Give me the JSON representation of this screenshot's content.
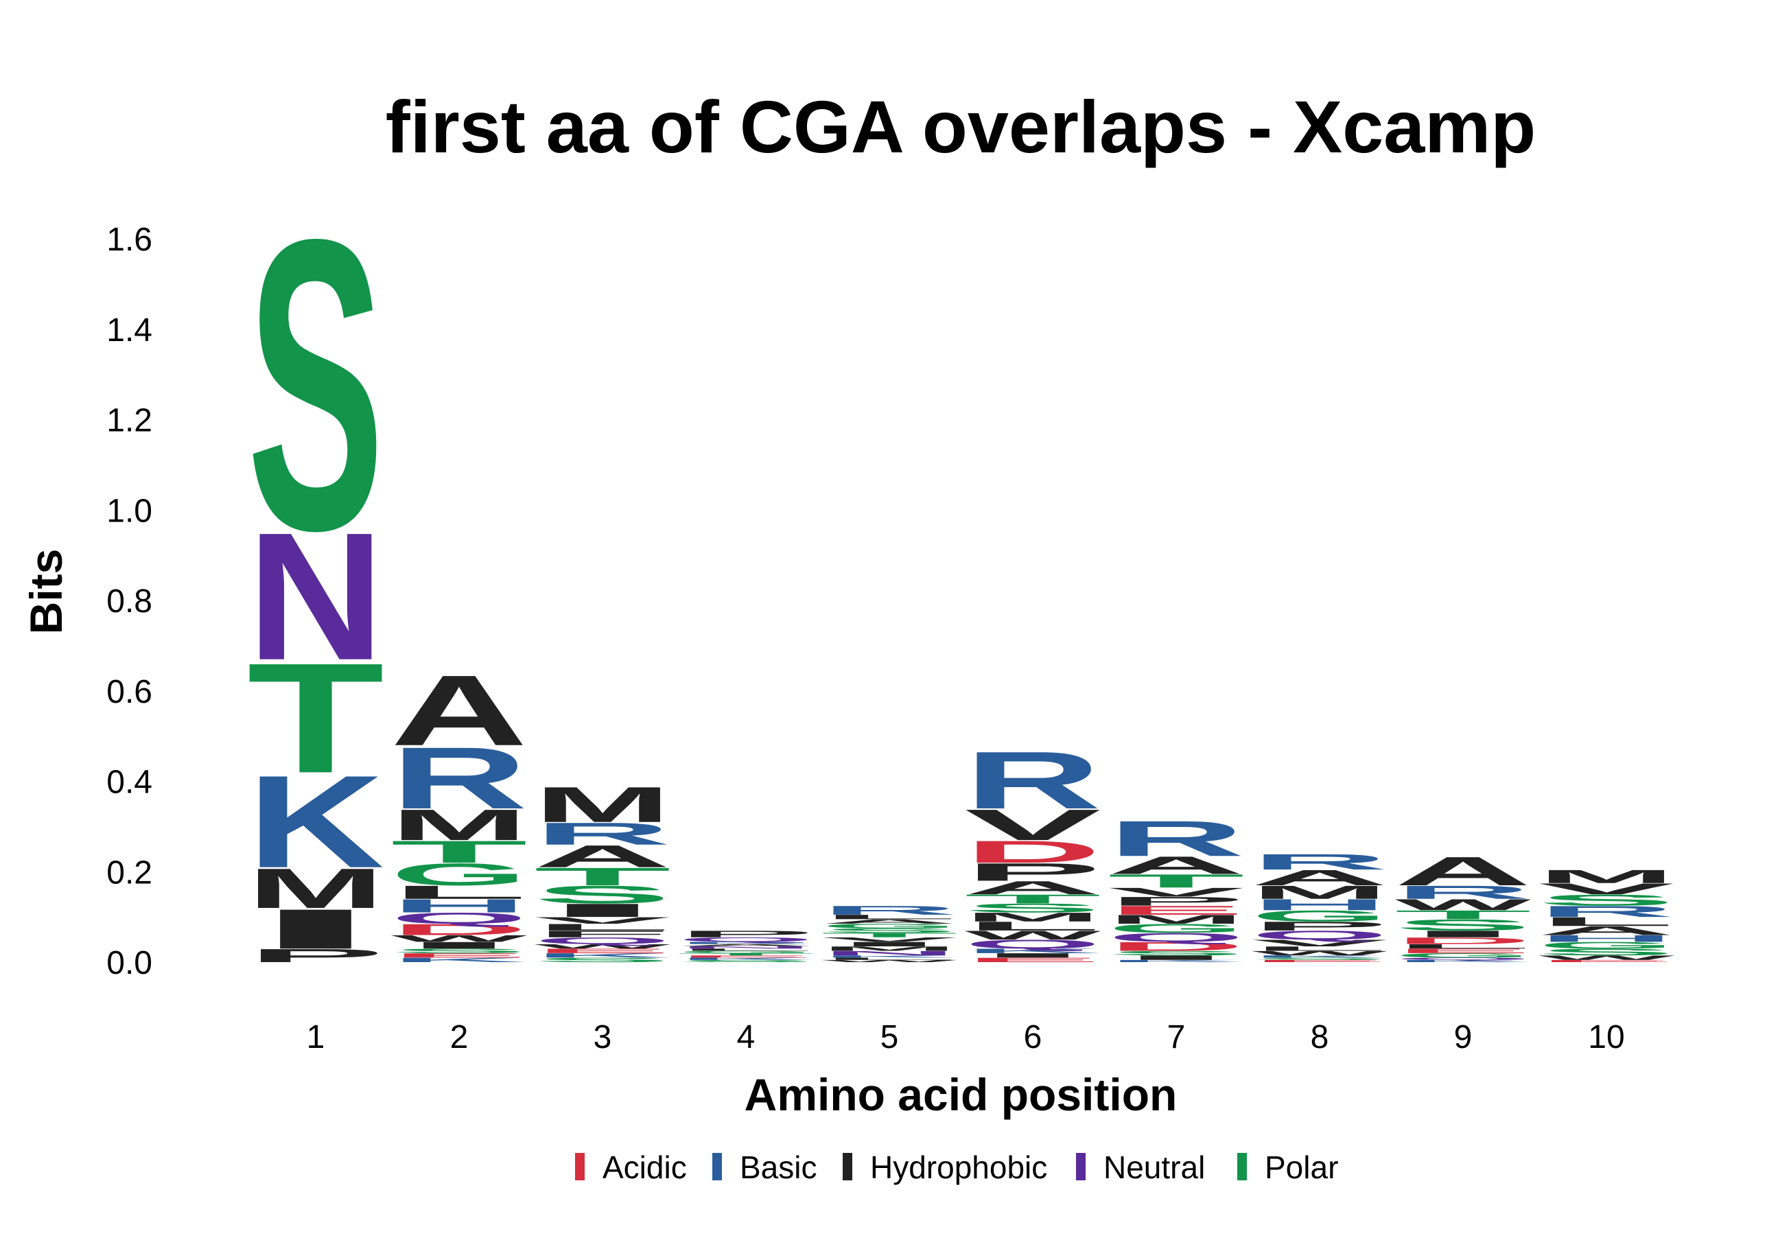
{
  "chart_data": {
    "type": "sequence-logo",
    "title": "first aa of CGA overlaps - Xcamp",
    "xlabel": "Amino acid position",
    "ylabel": "Bits",
    "ylim": [
      0,
      1.6
    ],
    "yticks": [
      "0.0",
      "0.2",
      "0.4",
      "0.6",
      "0.8",
      "1.0",
      "1.2",
      "1.4",
      "1.6"
    ],
    "ytick_values": [
      0,
      0.2,
      0.4,
      0.6,
      0.8,
      1.0,
      1.2,
      1.4,
      1.6
    ],
    "positions": [
      "1",
      "2",
      "3",
      "4",
      "5",
      "6",
      "7",
      "8",
      "9",
      "10"
    ],
    "colors": {
      "Acidic": "#d62e3f",
      "Basic": "#2a5d9b",
      "Hydrophobic": "#222222",
      "Neutral": "#5a2b9a",
      "Polar": "#12944a"
    },
    "legend": [
      {
        "label": "Acidic",
        "group": "Acidic"
      },
      {
        "label": "Basic",
        "group": "Basic"
      },
      {
        "label": "Hydrophobic",
        "group": "Hydrophobic"
      },
      {
        "label": "Neutral",
        "group": "Neutral"
      },
      {
        "label": "Polar",
        "group": "Polar"
      }
    ],
    "stacks": [
      {
        "position": "1",
        "letters": [
          {
            "aa": "P",
            "group": "Hydrophobic",
            "bits": 0.03
          },
          {
            "aa": "I",
            "group": "Hydrophobic",
            "bits": 0.09
          },
          {
            "aa": "M",
            "group": "Hydrophobic",
            "bits": 0.09
          },
          {
            "aa": "K",
            "group": "Basic",
            "bits": 0.21
          },
          {
            "aa": "T",
            "group": "Polar",
            "bits": 0.25
          },
          {
            "aa": "N",
            "group": "Neutral",
            "bits": 0.29
          },
          {
            "aa": "S",
            "group": "Polar",
            "bits": 0.66
          }
        ]
      },
      {
        "position": "2",
        "letters": [
          {
            "aa": "K",
            "group": "Basic",
            "bits": 0.01
          },
          {
            "aa": "E",
            "group": "Acidic",
            "bits": 0.01
          },
          {
            "aa": "S",
            "group": "Polar",
            "bits": 0.01
          },
          {
            "aa": "I",
            "group": "Hydrophobic",
            "bits": 0.015
          },
          {
            "aa": "W",
            "group": "Hydrophobic",
            "bits": 0.015
          },
          {
            "aa": "D",
            "group": "Acidic",
            "bits": 0.025
          },
          {
            "aa": "Q",
            "group": "Neutral",
            "bits": 0.025
          },
          {
            "aa": "H",
            "group": "Basic",
            "bits": 0.03
          },
          {
            "aa": "L",
            "group": "Hydrophobic",
            "bits": 0.03
          },
          {
            "aa": "G",
            "group": "Polar",
            "bits": 0.05
          },
          {
            "aa": "T",
            "group": "Polar",
            "bits": 0.05
          },
          {
            "aa": "M",
            "group": "Hydrophobic",
            "bits": 0.07
          },
          {
            "aa": "R",
            "group": "Basic",
            "bits": 0.14
          },
          {
            "aa": "A",
            "group": "Hydrophobic",
            "bits": 0.16
          }
        ]
      },
      {
        "position": "3",
        "letters": [
          {
            "aa": "S",
            "group": "Polar",
            "bits": 0.01
          },
          {
            "aa": "K",
            "group": "Basic",
            "bits": 0.01
          },
          {
            "aa": "E",
            "group": "Acidic",
            "bits": 0.01
          },
          {
            "aa": "W",
            "group": "Hydrophobic",
            "bits": 0.01
          },
          {
            "aa": "Q",
            "group": "Neutral",
            "bits": 0.015
          },
          {
            "aa": "F",
            "group": "Hydrophobic",
            "bits": 0.015
          },
          {
            "aa": "L",
            "group": "Hydrophobic",
            "bits": 0.015
          },
          {
            "aa": "V",
            "group": "Hydrophobic",
            "bits": 0.015
          },
          {
            "aa": "I",
            "group": "Hydrophobic",
            "bits": 0.03
          },
          {
            "aa": "S",
            "group": "Polar",
            "bits": 0.04
          },
          {
            "aa": "T",
            "group": "Polar",
            "bits": 0.04
          },
          {
            "aa": "A",
            "group": "Hydrophobic",
            "bits": 0.05
          },
          {
            "aa": "R",
            "group": "Basic",
            "bits": 0.05
          },
          {
            "aa": "M",
            "group": "Hydrophobic",
            "bits": 0.08
          }
        ]
      },
      {
        "position": "4",
        "letters": [
          {
            "aa": "S",
            "group": "Polar",
            "bits": 0.005
          },
          {
            "aa": "K",
            "group": "Basic",
            "bits": 0.005
          },
          {
            "aa": "E",
            "group": "Acidic",
            "bits": 0.005
          },
          {
            "aa": "T",
            "group": "Polar",
            "bits": 0.005
          },
          {
            "aa": "G",
            "group": "Polar",
            "bits": 0.005
          },
          {
            "aa": "L",
            "group": "Hydrophobic",
            "bits": 0.005
          },
          {
            "aa": "N",
            "group": "Neutral",
            "bits": 0.005
          },
          {
            "aa": "A",
            "group": "Hydrophobic",
            "bits": 0.005
          },
          {
            "aa": "R",
            "group": "Basic",
            "bits": 0.005
          },
          {
            "aa": "Q",
            "group": "Neutral",
            "bits": 0.01
          },
          {
            "aa": "P",
            "group": "Hydrophobic",
            "bits": 0.015
          }
        ]
      },
      {
        "position": "5",
        "letters": [
          {
            "aa": "W",
            "group": "Hydrophobic",
            "bits": 0.005
          },
          {
            "aa": "L",
            "group": "Hydrophobic",
            "bits": 0.005
          },
          {
            "aa": "K",
            "group": "Basic",
            "bits": 0.005
          },
          {
            "aa": "N",
            "group": "Neutral",
            "bits": 0.01
          },
          {
            "aa": "M",
            "group": "Hydrophobic",
            "bits": 0.01
          },
          {
            "aa": "I",
            "group": "Hydrophobic",
            "bits": 0.01
          },
          {
            "aa": "V",
            "group": "Hydrophobic",
            "bits": 0.01
          },
          {
            "aa": "T",
            "group": "Polar",
            "bits": 0.01
          },
          {
            "aa": "S",
            "group": "Polar",
            "bits": 0.01
          },
          {
            "aa": "G",
            "group": "Polar",
            "bits": 0.01
          },
          {
            "aa": "A",
            "group": "Hydrophobic",
            "bits": 0.01
          },
          {
            "aa": "L",
            "group": "Hydrophobic",
            "bits": 0.01
          },
          {
            "aa": "R",
            "group": "Basic",
            "bits": 0.02
          }
        ]
      },
      {
        "position": "6",
        "letters": [
          {
            "aa": "E",
            "group": "Acidic",
            "bits": 0.01
          },
          {
            "aa": "I",
            "group": "Hydrophobic",
            "bits": 0.01
          },
          {
            "aa": "K",
            "group": "Basic",
            "bits": 0.01
          },
          {
            "aa": "Q",
            "group": "Neutral",
            "bits": 0.02
          },
          {
            "aa": "W",
            "group": "Hydrophobic",
            "bits": 0.02
          },
          {
            "aa": "L",
            "group": "Hydrophobic",
            "bits": 0.02
          },
          {
            "aa": "M",
            "group": "Hydrophobic",
            "bits": 0.02
          },
          {
            "aa": "S",
            "group": "Polar",
            "bits": 0.02
          },
          {
            "aa": "T",
            "group": "Polar",
            "bits": 0.02
          },
          {
            "aa": "A",
            "group": "Hydrophobic",
            "bits": 0.03
          },
          {
            "aa": "P",
            "group": "Hydrophobic",
            "bits": 0.04
          },
          {
            "aa": "D",
            "group": "Acidic",
            "bits": 0.05
          },
          {
            "aa": "V",
            "group": "Hydrophobic",
            "bits": 0.07
          },
          {
            "aa": "R",
            "group": "Basic",
            "bits": 0.13
          }
        ]
      },
      {
        "position": "7",
        "letters": [
          {
            "aa": "K",
            "group": "Basic",
            "bits": 0.005
          },
          {
            "aa": "I",
            "group": "Hydrophobic",
            "bits": 0.01
          },
          {
            "aa": "S",
            "group": "Polar",
            "bits": 0.01
          },
          {
            "aa": "D",
            "group": "Acidic",
            "bits": 0.02
          },
          {
            "aa": "Q",
            "group": "Neutral",
            "bits": 0.02
          },
          {
            "aa": "G",
            "group": "Polar",
            "bits": 0.02
          },
          {
            "aa": "M",
            "group": "Hydrophobic",
            "bits": 0.02
          },
          {
            "aa": "E",
            "group": "Acidic",
            "bits": 0.02
          },
          {
            "aa": "P",
            "group": "Hydrophobic",
            "bits": 0.02
          },
          {
            "aa": "V",
            "group": "Hydrophobic",
            "bits": 0.02
          },
          {
            "aa": "T",
            "group": "Polar",
            "bits": 0.03
          },
          {
            "aa": "A",
            "group": "Hydrophobic",
            "bits": 0.04
          },
          {
            "aa": "R",
            "group": "Basic",
            "bits": 0.08
          }
        ]
      },
      {
        "position": "8",
        "letters": [
          {
            "aa": "E",
            "group": "Acidic",
            "bits": 0.005
          },
          {
            "aa": "S",
            "group": "Polar",
            "bits": 0.005
          },
          {
            "aa": "K",
            "group": "Basic",
            "bits": 0.005
          },
          {
            "aa": "W",
            "group": "Hydrophobic",
            "bits": 0.01
          },
          {
            "aa": "L",
            "group": "Hydrophobic",
            "bits": 0.01
          },
          {
            "aa": "V",
            "group": "Hydrophobic",
            "bits": 0.015
          },
          {
            "aa": "Q",
            "group": "Neutral",
            "bits": 0.02
          },
          {
            "aa": "P",
            "group": "Hydrophobic",
            "bits": 0.02
          },
          {
            "aa": "G",
            "group": "Polar",
            "bits": 0.025
          },
          {
            "aa": "H",
            "group": "Basic",
            "bits": 0.025
          },
          {
            "aa": "M",
            "group": "Hydrophobic",
            "bits": 0.03
          },
          {
            "aa": "A",
            "group": "Hydrophobic",
            "bits": 0.035
          },
          {
            "aa": "R",
            "group": "Basic",
            "bits": 0.035
          }
        ]
      },
      {
        "position": "9",
        "letters": [
          {
            "aa": "K",
            "group": "Basic",
            "bits": 0.005
          },
          {
            "aa": "Q",
            "group": "Neutral",
            "bits": 0.005
          },
          {
            "aa": "G",
            "group": "Polar",
            "bits": 0.01
          },
          {
            "aa": "E",
            "group": "Acidic",
            "bits": 0.01
          },
          {
            "aa": "L",
            "group": "Hydrophobic",
            "bits": 0.01
          },
          {
            "aa": "D",
            "group": "Acidic",
            "bits": 0.015
          },
          {
            "aa": "I",
            "group": "Hydrophobic",
            "bits": 0.015
          },
          {
            "aa": "S",
            "group": "Polar",
            "bits": 0.025
          },
          {
            "aa": "T",
            "group": "Polar",
            "bits": 0.02
          },
          {
            "aa": "W",
            "group": "Hydrophobic",
            "bits": 0.025
          },
          {
            "aa": "R",
            "group": "Basic",
            "bits": 0.03
          },
          {
            "aa": "A",
            "group": "Hydrophobic",
            "bits": 0.065
          }
        ]
      },
      {
        "position": "10",
        "letters": [
          {
            "aa": "E",
            "group": "Acidic",
            "bits": 0.005
          },
          {
            "aa": "W",
            "group": "Hydrophobic",
            "bits": 0.01
          },
          {
            "aa": "S",
            "group": "Polar",
            "bits": 0.015
          },
          {
            "aa": "G",
            "group": "Polar",
            "bits": 0.015
          },
          {
            "aa": "H",
            "group": "Basic",
            "bits": 0.015
          },
          {
            "aa": "A",
            "group": "Hydrophobic",
            "bits": 0.02
          },
          {
            "aa": "L",
            "group": "Hydrophobic",
            "bits": 0.02
          },
          {
            "aa": "R",
            "group": "Basic",
            "bits": 0.025
          },
          {
            "aa": "S",
            "group": "Polar",
            "bits": 0.025
          },
          {
            "aa": "V",
            "group": "Hydrophobic",
            "bits": 0.025
          },
          {
            "aa": "M",
            "group": "Hydrophobic",
            "bits": 0.03
          }
        ]
      }
    ]
  }
}
